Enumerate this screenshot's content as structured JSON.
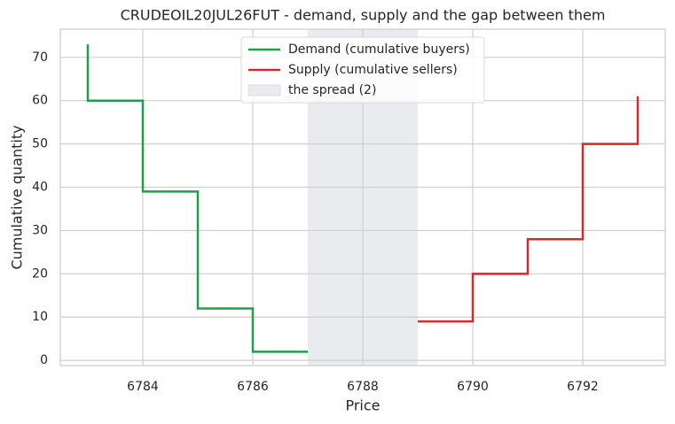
{
  "chart_data": {
    "type": "step",
    "title": "CRUDEOIL20JUL26FUT - demand, supply and the gap between them",
    "x_label": "Price",
    "y_label": "Cumulative quantity",
    "series": [
      {
        "name": "Demand (cumulative buyers)",
        "color": "#1f9e4b",
        "step": "pre",
        "x": [
          6783,
          6784,
          6785,
          6786,
          6787
        ],
        "values": [
          73,
          60,
          39,
          12,
          2
        ]
      },
      {
        "name": "Supply (cumulative sellers)",
        "color": "#d12b2b",
        "step": "post",
        "x": [
          6789,
          6790,
          6791,
          6792,
          6793
        ],
        "values": [
          9,
          20,
          28,
          50,
          61
        ]
      }
    ],
    "spread": {
      "label": "the spread (2)",
      "range": [
        6787,
        6789
      ],
      "color": "#d5d8dd"
    },
    "xlim": [
      6782.5,
      6793.5
    ],
    "xticks": [
      6784,
      6786,
      6788,
      6790,
      6792
    ],
    "ylim": [
      -1.2,
      76.5
    ],
    "yticks": [
      0,
      10,
      20,
      30,
      40,
      50,
      60,
      70
    ],
    "grid": true,
    "legend": "upper center"
  }
}
